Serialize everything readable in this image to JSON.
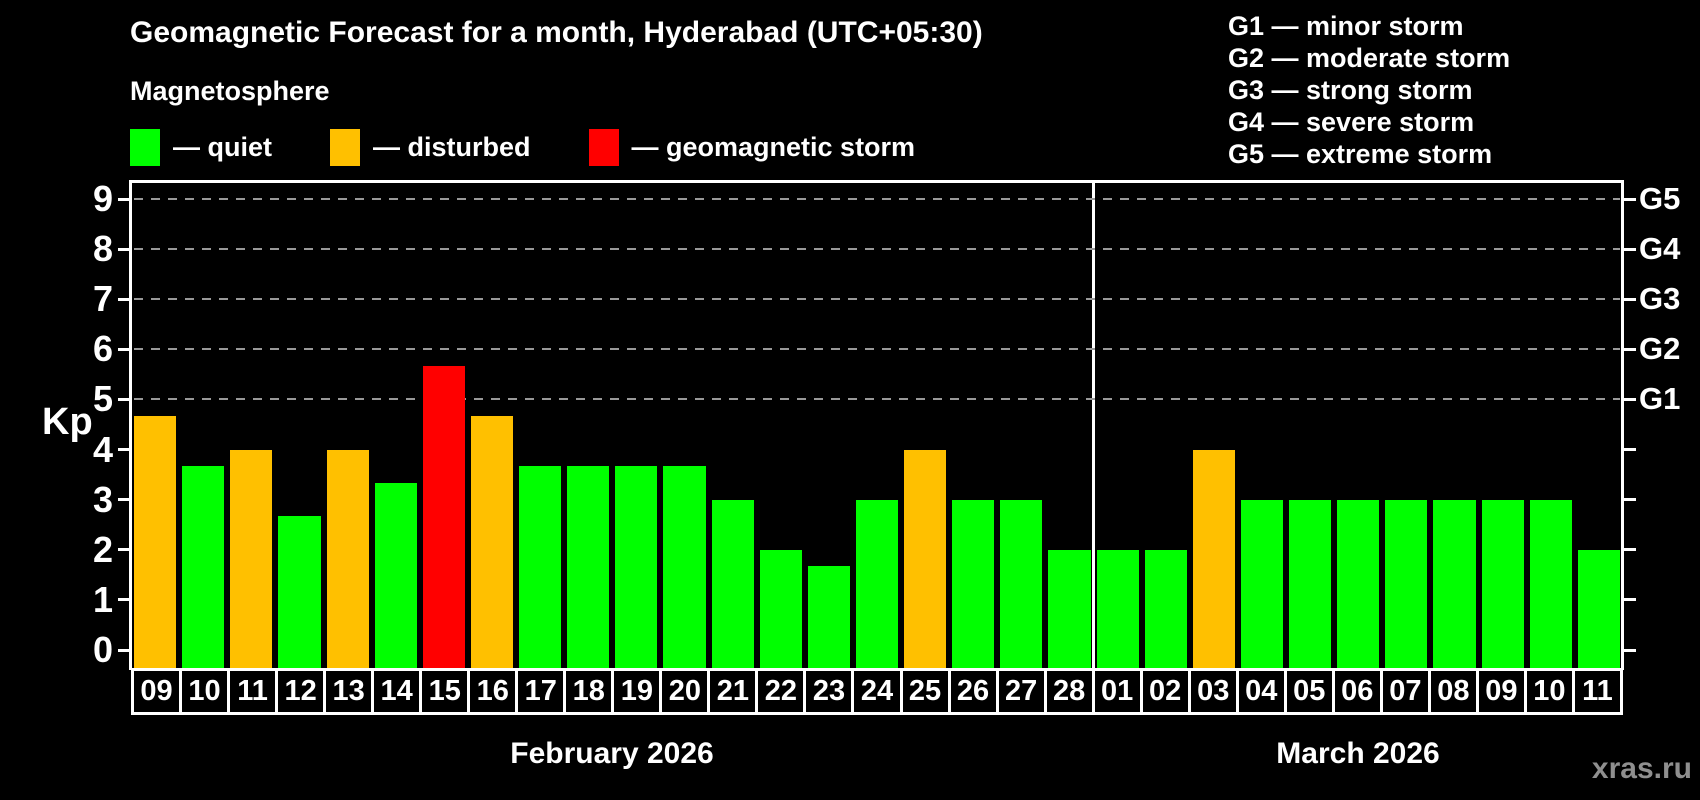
{
  "header": {
    "title": "Geomagnetic Forecast for a month, Hyderabad (UTC+05:30)",
    "subtitle": "Magnetosphere"
  },
  "status_legend": [
    {
      "name": "quiet",
      "label": "— quiet",
      "color": "#00ff00"
    },
    {
      "name": "disturbed",
      "label": "— disturbed",
      "color": "#ffc000"
    },
    {
      "name": "storm",
      "label": "— geomagnetic storm",
      "color": "#ff0000"
    }
  ],
  "g_legend": [
    "G1 — minor storm",
    "G2 — moderate storm",
    "G3 — strong storm",
    "G4 — severe storm",
    "G5 — extreme storm"
  ],
  "y_axis": {
    "label": "Kp",
    "ticks": [
      "0",
      "1",
      "2",
      "3",
      "4",
      "5",
      "6",
      "7",
      "8",
      "9"
    ]
  },
  "right_axis": {
    "tick_kps": [
      0,
      1,
      2,
      3,
      4,
      5,
      6,
      7,
      8,
      9
    ],
    "labels": [
      {
        "text": "G1",
        "kp": 5
      },
      {
        "text": "G2",
        "kp": 6
      },
      {
        "text": "G3",
        "kp": 7
      },
      {
        "text": "G4",
        "kp": 8
      },
      {
        "text": "G5",
        "kp": 9
      }
    ]
  },
  "watermark": "xras.ru",
  "chart_data": {
    "type": "bar",
    "title": "Geomagnetic Forecast for a month, Hyderabad (UTC+05:30)",
    "subtitle": "Magnetosphere",
    "xlabel": "",
    "ylabel": "Kp",
    "ylim": [
      0,
      9
    ],
    "grid": "dashed horizontal at Kp 5-9 only",
    "grid_kp": [
      5,
      6,
      7,
      8,
      9
    ],
    "legend_position": "top-left",
    "g_thresholds": {
      "G1": 5,
      "G2": 6,
      "G3": 7,
      "G4": 8,
      "G5": 9
    },
    "status_colors": {
      "quiet": "#00ff00",
      "disturbed": "#ffc000",
      "storm": "#ff0000"
    },
    "months": [
      {
        "label": "February 2026",
        "days": [
          {
            "date": "09",
            "kp": 4.67,
            "status": "disturbed"
          },
          {
            "date": "10",
            "kp": 3.67,
            "status": "quiet"
          },
          {
            "date": "11",
            "kp": 4.0,
            "status": "disturbed"
          },
          {
            "date": "12",
            "kp": 2.67,
            "status": "quiet"
          },
          {
            "date": "13",
            "kp": 4.0,
            "status": "disturbed"
          },
          {
            "date": "14",
            "kp": 3.33,
            "status": "quiet"
          },
          {
            "date": "15",
            "kp": 5.67,
            "status": "storm"
          },
          {
            "date": "16",
            "kp": 4.67,
            "status": "disturbed"
          },
          {
            "date": "17",
            "kp": 3.67,
            "status": "quiet"
          },
          {
            "date": "18",
            "kp": 3.67,
            "status": "quiet"
          },
          {
            "date": "19",
            "kp": 3.67,
            "status": "quiet"
          },
          {
            "date": "20",
            "kp": 3.67,
            "status": "quiet"
          },
          {
            "date": "21",
            "kp": 3.0,
            "status": "quiet"
          },
          {
            "date": "22",
            "kp": 2.0,
            "status": "quiet"
          },
          {
            "date": "23",
            "kp": 1.67,
            "status": "quiet"
          },
          {
            "date": "24",
            "kp": 3.0,
            "status": "quiet"
          },
          {
            "date": "25",
            "kp": 4.0,
            "status": "disturbed"
          },
          {
            "date": "26",
            "kp": 3.0,
            "status": "quiet"
          },
          {
            "date": "27",
            "kp": 3.0,
            "status": "quiet"
          },
          {
            "date": "28",
            "kp": 2.0,
            "status": "quiet"
          }
        ]
      },
      {
        "label": "March 2026",
        "days": [
          {
            "date": "01",
            "kp": 2.0,
            "status": "quiet"
          },
          {
            "date": "02",
            "kp": 2.0,
            "status": "quiet"
          },
          {
            "date": "03",
            "kp": 4.0,
            "status": "disturbed"
          },
          {
            "date": "04",
            "kp": 3.0,
            "status": "quiet"
          },
          {
            "date": "05",
            "kp": 3.0,
            "status": "quiet"
          },
          {
            "date": "06",
            "kp": 3.0,
            "status": "quiet"
          },
          {
            "date": "07",
            "kp": 3.0,
            "status": "quiet"
          },
          {
            "date": "08",
            "kp": 3.0,
            "status": "quiet"
          },
          {
            "date": "09",
            "kp": 3.0,
            "status": "quiet"
          },
          {
            "date": "10",
            "kp": 3.0,
            "status": "quiet"
          },
          {
            "date": "11",
            "kp": 2.0,
            "status": "quiet"
          }
        ]
      }
    ]
  }
}
